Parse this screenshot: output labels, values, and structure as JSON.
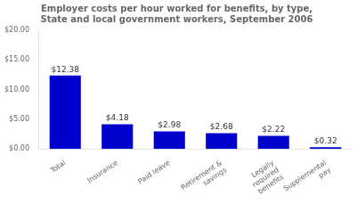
{
  "chart_data": {
    "type": "bar",
    "title": "Employer costs per hour worked for benefits, by type,\nState and local government workers, September 2006",
    "categories": [
      "Total",
      "Insurance",
      "Paid leave",
      "Retirement &\nsavings",
      "Legally\nrequired\nbenefits",
      "Supplemental\npay"
    ],
    "values": [
      12.38,
      4.18,
      2.98,
      2.68,
      2.22,
      0.32
    ],
    "value_labels": [
      "$12.38",
      "$4.18",
      "$2.98",
      "$2.68",
      "$2.22",
      "$0.32"
    ],
    "data_labels": true,
    "color": "#0000CC",
    "ylim": [
      0,
      20
    ],
    "yticks": [
      {
        "value": 0,
        "label": "$0.00"
      },
      {
        "value": 5,
        "label": "$5.00"
      },
      {
        "value": 10,
        "label": "$10.00"
      },
      {
        "value": 15,
        "label": "$15.00"
      },
      {
        "value": 20,
        "label": "$20.00"
      }
    ],
    "grid": false
  }
}
